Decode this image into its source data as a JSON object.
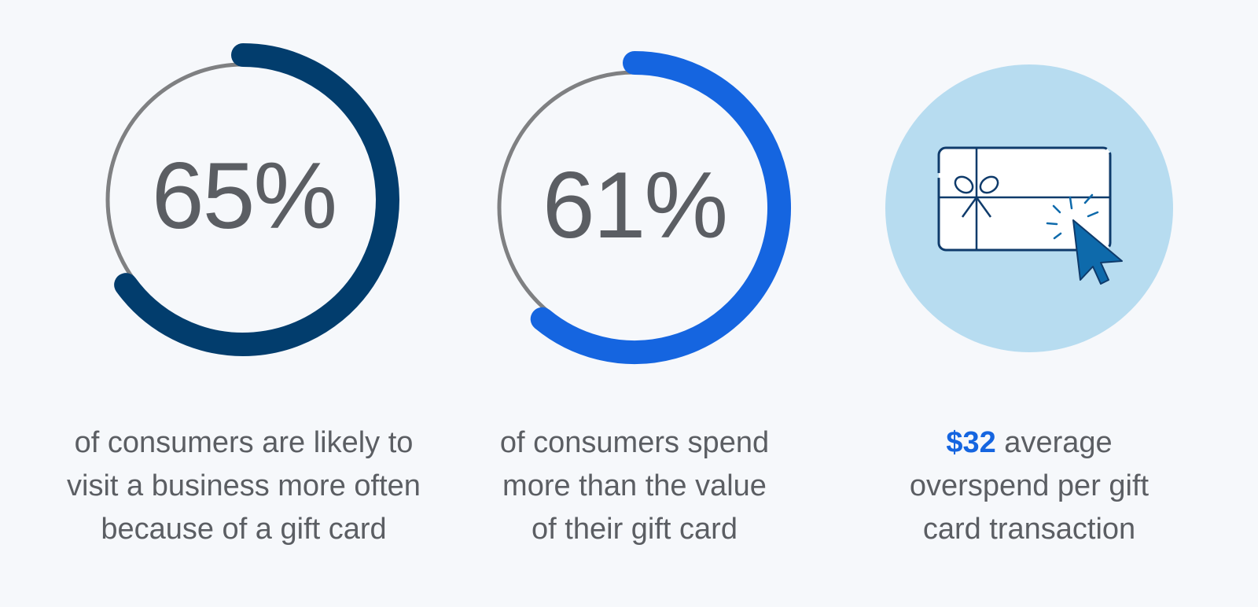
{
  "colors": {
    "background": "#f6f8fb",
    "ring_track": "#7f8082",
    "ring_1": "#023d6d",
    "ring_2": "#1565e0",
    "highlight": "#1565e0",
    "badge_circle": "#b7dcf0",
    "icon_navy": "#0f3b6b",
    "icon_cursor": "#0e6aab"
  },
  "chart_data": [
    {
      "type": "donut",
      "value": 65,
      "max": 100,
      "label": "65%",
      "caption": [
        "of consumers are likely to",
        "visit a business more often",
        "because of a gift card"
      ]
    },
    {
      "type": "donut",
      "value": 61,
      "max": 100,
      "label": "61%",
      "caption": [
        "of consumers spend",
        "more than the value",
        "of their gift card"
      ]
    }
  ],
  "stat3": {
    "icon": "gift-card-click-icon",
    "highlight": "$32",
    "line1_rest": " average",
    "line2": "overspend per gift",
    "line3": "card transaction"
  }
}
